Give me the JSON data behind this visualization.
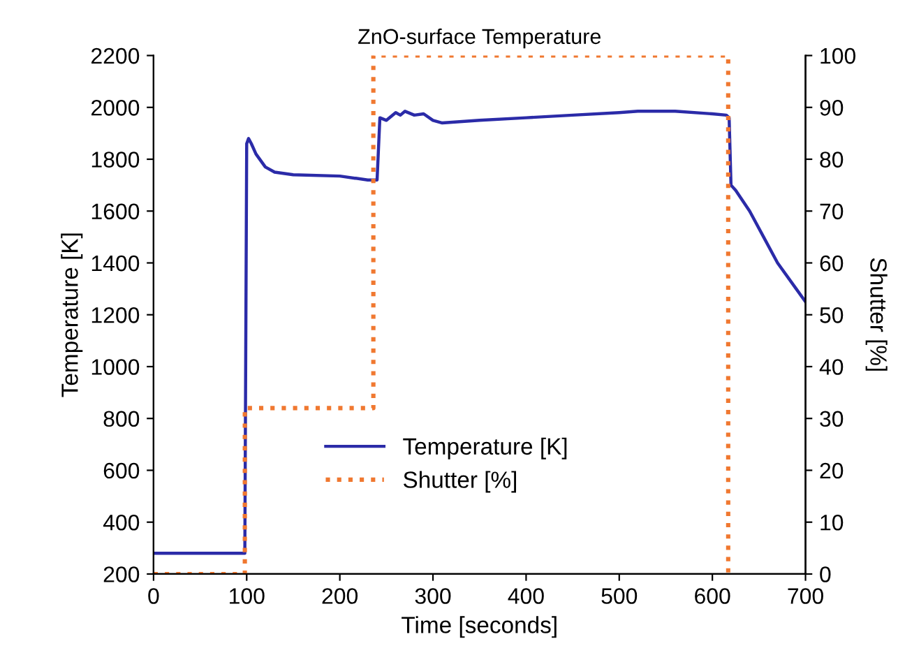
{
  "chart_data": {
    "type": "line",
    "title": "ZnO-surface Temperature",
    "xlabel": "Time [seconds]",
    "ylabel": "Temperature [K]",
    "y2label": "Shutter [%]",
    "xlim": [
      0,
      700
    ],
    "xticks": [
      0,
      100,
      200,
      300,
      400,
      500,
      600,
      700
    ],
    "ylim": [
      200,
      2200
    ],
    "yticks": [
      200,
      400,
      600,
      800,
      1000,
      1200,
      1400,
      1600,
      1800,
      2000,
      2200
    ],
    "y2lim": [
      0,
      100
    ],
    "y2ticks": [
      0,
      10,
      20,
      30,
      40,
      50,
      60,
      70,
      80,
      90,
      100
    ],
    "legend": "center",
    "grid": false,
    "marker": "none",
    "series": [
      {
        "name": "Temperature [K]",
        "color": "#2b2ba8",
        "line_style": "solid",
        "x": [
          0,
          98,
          100,
          102,
          105,
          110,
          120,
          130,
          150,
          200,
          230,
          240,
          243,
          250,
          260,
          265,
          270,
          280,
          290,
          300,
          310,
          350,
          400,
          450,
          500,
          520,
          560,
          600,
          615,
          618,
          620,
          625,
          640,
          655,
          670,
          690,
          700
        ],
        "values": [
          280,
          280,
          1860,
          1880,
          1860,
          1820,
          1770,
          1750,
          1740,
          1735,
          1720,
          1720,
          1960,
          1950,
          1980,
          1970,
          1985,
          1970,
          1975,
          1950,
          1940,
          1950,
          1960,
          1970,
          1980,
          1985,
          1985,
          1975,
          1970,
          1960,
          1700,
          1680,
          1600,
          1500,
          1400,
          1300,
          1250
        ]
      },
      {
        "name": "Shutter [%]",
        "color": "#f07830",
        "line_style": "dotted",
        "axis": "y2",
        "x": [
          0,
          98,
          98,
          236,
          236,
          617,
          617
        ],
        "values": [
          0,
          0,
          32,
          32,
          100,
          100,
          0
        ]
      }
    ]
  }
}
